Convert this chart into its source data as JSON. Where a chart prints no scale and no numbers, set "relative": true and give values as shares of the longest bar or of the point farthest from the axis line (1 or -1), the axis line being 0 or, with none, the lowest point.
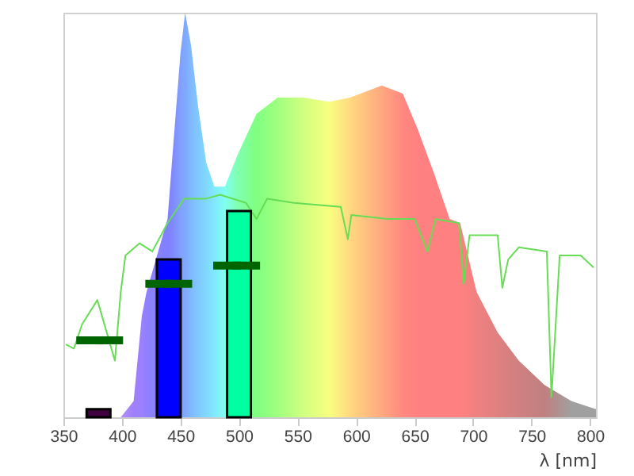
{
  "chart_data": {
    "type": "area",
    "relative": true,
    "xlabel": "λ [nm]",
    "xlim": [
      350,
      805
    ],
    "xticks": [
      350,
      400,
      450,
      500,
      550,
      600,
      650,
      700,
      750,
      800
    ],
    "grid": false,
    "series": [
      {
        "x": [
          399,
          410,
          417,
          421,
          439,
          443,
          450,
          454,
          459,
          465,
          472,
          479,
          488,
          499,
          515,
          533,
          555,
          577,
          595,
          622,
          640,
          653,
          667,
          680,
          689,
          703,
          721,
          739,
          761,
          784,
          805
        ],
        "values": [
          0,
          0.04,
          0.25,
          0.31,
          0.49,
          0.64,
          0.9,
          1.0,
          0.92,
          0.77,
          0.63,
          0.57,
          0.57,
          0.65,
          0.75,
          0.79,
          0.79,
          0.78,
          0.79,
          0.82,
          0.8,
          0.71,
          0.6,
          0.49,
          0.48,
          0.31,
          0.21,
          0.14,
          0.08,
          0.04,
          0.02
        ],
        "colors": [
          "#b090ff",
          "#a080f8",
          "#9c80ff",
          "#9080ff",
          "#8080ff",
          "#8088ff",
          "#80a0ff",
          "#80a8ff",
          "#80b8ff",
          "#80c8ff",
          "#80d8ff",
          "#80e8ff",
          "#80fff0",
          "#80ffb0",
          "#80ff80",
          "#a0ff80",
          "#d0ff80",
          "#f8ff80",
          "#ffd880",
          "#ffa880",
          "#ff8880",
          "#ff8080",
          "#ff8080",
          "#ff8080",
          "#ff8080",
          "#f08080",
          "#e08080",
          "#d08080",
          "#c08080",
          "#a0a0a0",
          "#a0a0a0"
        ]
      },
      {
        "type": "line",
        "color": "#66dd55",
        "x": [
          352,
          359,
          366,
          379,
          394,
          399,
          403,
          415,
          426,
          439,
          453,
          471,
          484,
          506,
          515,
          524,
          547,
          587,
          593,
          596,
          627,
          650,
          661,
          668,
          688,
          692,
          697,
          721,
          725,
          730,
          739,
          763,
          767,
          774,
          792,
          803
        ],
        "values": [
          0.18,
          0.17,
          0.23,
          0.29,
          0.14,
          0.31,
          0.4,
          0.43,
          0.41,
          0.48,
          0.54,
          0.54,
          0.55,
          0.53,
          0.49,
          0.54,
          0.53,
          0.52,
          0.44,
          0.5,
          0.49,
          0.49,
          0.41,
          0.49,
          0.48,
          0.33,
          0.45,
          0.45,
          0.32,
          0.39,
          0.42,
          0.41,
          0.05,
          0.4,
          0.4,
          0.37
        ]
      },
      {
        "type": "bar",
        "x": [
          380,
          440,
          500
        ],
        "values": [
          0.02,
          0.39,
          0.51
        ],
        "colors": [
          "#400040",
          "#0000ff",
          "#00ffa0"
        ]
      },
      {
        "type": "scatter",
        "marker": "square",
        "color": "#006400",
        "x": [
          381,
          440,
          498
        ],
        "values": [
          0.19,
          0.33,
          0.375
        ],
        "xerrors": [
          20,
          20,
          20
        ]
      }
    ]
  }
}
